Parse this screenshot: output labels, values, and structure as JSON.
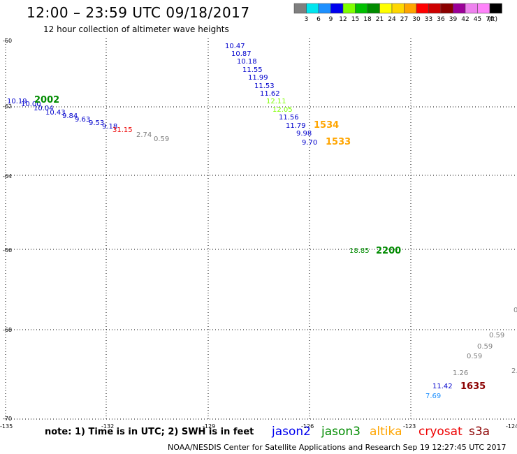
{
  "header": {
    "title": "12:00 – 23:59 UTC 09/18/2017",
    "subtitle": "12 hour collection of altimeter wave heights"
  },
  "colorbar": {
    "unit_label": "(ft)",
    "labels": [
      "3",
      "6",
      "9",
      "12",
      "15",
      "18",
      "21",
      "24",
      "27",
      "30",
      "33",
      "36",
      "39",
      "42",
      "45",
      "70"
    ],
    "colors": [
      "#7f7f7f",
      "#00e5ee",
      "#1e90ff",
      "#0000ee",
      "#7fff00",
      "#00c000",
      "#008b00",
      "#ffff00",
      "#ffd700",
      "#ffa500",
      "#ff0000",
      "#cd0000",
      "#8b0000",
      "#9b0098",
      "#ee82ee",
      "#ff83fa",
      "#000000"
    ]
  },
  "axes": {
    "lat_labels": [
      "-60",
      "-62",
      "-64",
      "-66",
      "-68",
      "-70"
    ],
    "lon_labels": [
      "-135",
      "-132",
      "-129",
      "-126",
      "-123",
      "-124"
    ]
  },
  "observations": [
    {
      "text": "10.47",
      "color": "#0000cc"
    },
    {
      "text": "10.87",
      "color": "#0000cc"
    },
    {
      "text": "10.18",
      "color": "#0000cc"
    },
    {
      "text": "11.55",
      "color": "#0000cc"
    },
    {
      "text": "11.99",
      "color": "#0000cc"
    },
    {
      "text": "11.53",
      "color": "#0000cc"
    },
    {
      "text": "11.62",
      "color": "#0000cc"
    },
    {
      "text": "12.11",
      "color": "#7fff00"
    },
    {
      "text": "12.05",
      "color": "#7fff00"
    },
    {
      "text": "11.56",
      "color": "#0000cc"
    },
    {
      "text": "11.79",
      "color": "#0000cc"
    },
    {
      "text": "9.98",
      "color": "#0000cc"
    },
    {
      "text": "9.70",
      "color": "#0000cc"
    },
    {
      "text": "10.19",
      "color": "#0000cc"
    },
    {
      "text": "10.00",
      "color": "#0000cc"
    },
    {
      "text": "10.04",
      "color": "#0000cc"
    },
    {
      "text": "10.43",
      "color": "#0000cc"
    },
    {
      "text": "9.84",
      "color": "#0000cc"
    },
    {
      "text": "9.63",
      "color": "#0000cc"
    },
    {
      "text": "9.53",
      "color": "#0000cc"
    },
    {
      "text": "9.18",
      "color": "#0000cc"
    },
    {
      "text": "31.15",
      "color": "#ee0000"
    },
    {
      "text": "2.74",
      "color": "#7f7f7f"
    },
    {
      "text": "0.59",
      "color": "#7f7f7f"
    },
    {
      "text": "18.85",
      "color": "#008b00"
    },
    {
      "text": "0.59",
      "color": "#7f7f7f"
    },
    {
      "text": "0.59",
      "color": "#7f7f7f"
    },
    {
      "text": "0.59",
      "color": "#7f7f7f"
    },
    {
      "text": "1.26",
      "color": "#7f7f7f"
    },
    {
      "text": "11.42",
      "color": "#0000cc"
    },
    {
      "text": "7.69",
      "color": "#1e90ff"
    },
    {
      "text": "2.",
      "color": "#7f7f7f"
    },
    {
      "text": "0",
      "color": "#7f7f7f"
    }
  ],
  "pass_times": [
    {
      "text": "2002",
      "color": "#008b00"
    },
    {
      "text": "1534",
      "color": "#ffa500"
    },
    {
      "text": "1533",
      "color": "#ffa500"
    },
    {
      "text": "2200",
      "color": "#008b00"
    },
    {
      "text": "1635",
      "color": "#8b0000"
    }
  ],
  "footer": {
    "note": "note: 1) Time is in UTC; 2) SWH is in feet",
    "missions": [
      {
        "name": "jason2",
        "color": "#0000ee"
      },
      {
        "name": "jason3",
        "color": "#008b00"
      },
      {
        "name": "altika",
        "color": "#ffa500"
      },
      {
        "name": "cryosat",
        "color": "#ee0000"
      },
      {
        "name": "s3a",
        "color": "#8b0000"
      }
    ],
    "credit": "NOAA/NESDIS Center for Satellite Applications and Research    Sep 19 12:27:45 UTC 2017"
  }
}
